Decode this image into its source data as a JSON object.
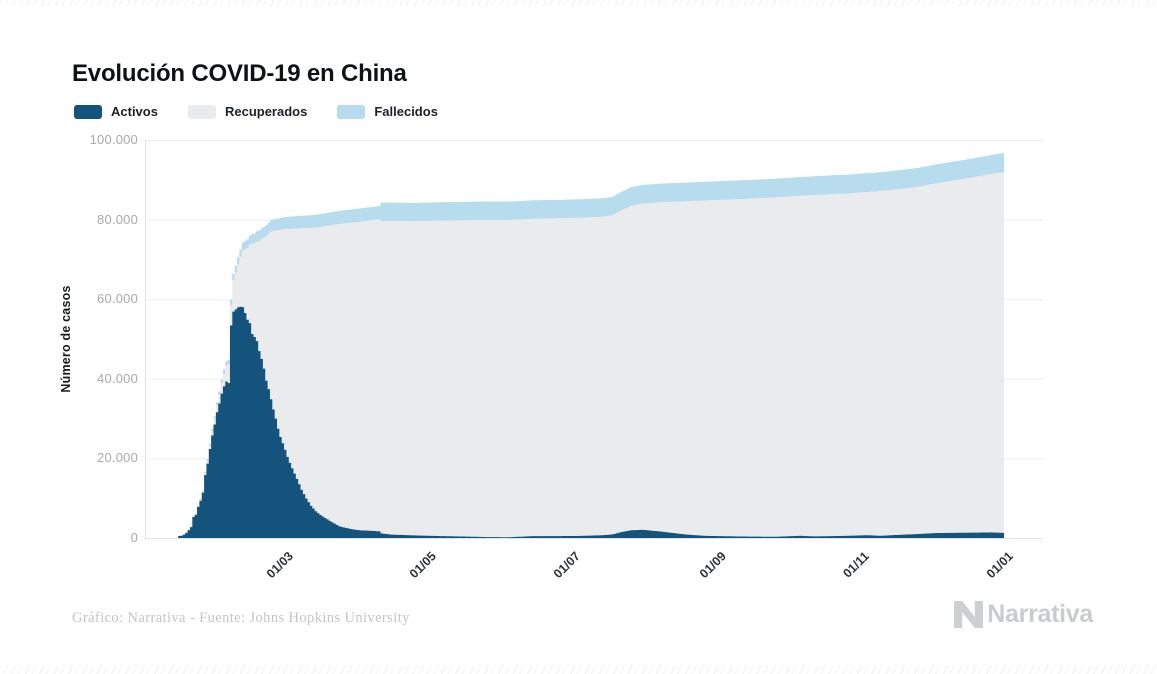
{
  "page": {
    "title": "Evolución COVID-19 en China"
  },
  "legend": [
    {
      "label": "Activos",
      "color": "#14537B"
    },
    {
      "label": "Recuperados",
      "color": "#E9EBEC"
    },
    {
      "label": "Fallecidos",
      "color": "#B6DCEE"
    }
  ],
  "footer": {
    "credit": "Gráfico: Narrativa - Fuente: Johns Hopkins University",
    "brand": "Narrativa"
  },
  "chart_data": {
    "type": "bar",
    "stacked": true,
    "title": "Evolución COVID-19 en China",
    "xlabel": "",
    "ylabel": "Número de casos",
    "ylim": [
      0,
      100000
    ],
    "grid": "horizontal",
    "legend_position": "top-left",
    "series_order_bottom_to_top": [
      "Activos",
      "Recuperados",
      "Fallecidos"
    ],
    "x_unit": "days from first bar (late January 2020) to mid January 2021",
    "x_ticks": [
      {
        "label": "01/03",
        "day": 39
      },
      {
        "label": "01/05",
        "day": 100
      },
      {
        "label": "01/07",
        "day": 161
      },
      {
        "label": "01/09",
        "day": 223
      },
      {
        "label": "01/11",
        "day": 284
      },
      {
        "label": "01/01",
        "day": 345
      }
    ],
    "y_ticks": [
      {
        "label": "0",
        "value": 0
      },
      {
        "label": "20.000",
        "value": 20000
      },
      {
        "label": "40.000",
        "value": 40000
      },
      {
        "label": "60.000",
        "value": 60000
      },
      {
        "label": "80.000",
        "value": 80000
      },
      {
        "label": "100.000",
        "value": 100000
      }
    ],
    "samples_format": [
      "day",
      "activos",
      "recuperados",
      "fallecidos"
    ],
    "samples": [
      [
        0,
        503,
        28,
        17
      ],
      [
        1,
        595,
        30,
        18
      ],
      [
        2,
        858,
        36,
        26
      ],
      [
        3,
        1325,
        39,
        42
      ],
      [
        4,
        1970,
        49,
        56
      ],
      [
        5,
        2737,
        58,
        82
      ],
      [
        6,
        5277,
        101,
        131
      ],
      [
        7,
        5834,
        120,
        133
      ],
      [
        8,
        7835,
        135,
        171
      ],
      [
        9,
        9375,
        214,
        213
      ],
      [
        10,
        11389,
        243,
        259
      ],
      [
        11,
        15806,
        463,
        361
      ],
      [
        12,
        18677,
        614,
        425
      ],
      [
        13,
        22373,
        843,
        491
      ],
      [
        14,
        25762,
        1115,
        563
      ],
      [
        15,
        28515,
        1439,
        633
      ],
      [
        16,
        31586,
        1806,
        718
      ],
      [
        17,
        33787,
        2222,
        805
      ],
      [
        18,
        36285,
        2639,
        905
      ],
      [
        19,
        38098,
        3244,
        1012
      ],
      [
        20,
        39328,
        3946,
        1112
      ],
      [
        21,
        38959,
        4683,
        1117
      ],
      [
        22,
        53376,
        5150,
        1369
      ],
      [
        23,
        56864,
        7973,
        1521
      ],
      [
        24,
        57452,
        9298,
        1663
      ],
      [
        25,
        57988,
        10755,
        1770
      ],
      [
        26,
        58104,
        12462,
        1868
      ],
      [
        27,
        58001,
        14206,
        2004
      ],
      [
        28,
        56546,
        15962,
        2111
      ],
      [
        29,
        54825,
        18014,
        2238
      ],
      [
        30,
        54000,
        19700,
        2345
      ],
      [
        31,
        51251,
        22699,
        2442
      ],
      [
        32,
        50498,
        23590,
        2445
      ],
      [
        33,
        49459,
        24990,
        2593
      ],
      [
        34,
        46949,
        27650,
        2663
      ],
      [
        35,
        45009,
        30053,
        2717
      ],
      [
        36,
        42546,
        32898,
        2747
      ],
      [
        37,
        39549,
        36291,
        2791
      ],
      [
        38,
        37414,
        39002,
        2835
      ],
      [
        39,
        34846,
        42110,
        2870
      ],
      [
        40,
        32301,
        44810,
        2915
      ],
      [
        41,
        30002,
        47204,
        2945
      ],
      [
        42,
        27434,
        49856,
        2981
      ],
      [
        43,
        25364,
        52045,
        3013
      ],
      [
        44,
        23805,
        53726,
        3042
      ],
      [
        45,
        22178,
        55404,
        3070
      ],
      [
        46,
        20385,
        57217,
        3097
      ],
      [
        47,
        18881,
        58735,
        3119
      ],
      [
        48,
        17515,
        60106,
        3136
      ],
      [
        50,
        14859,
        62901,
        3172
      ],
      [
        52,
        12124,
        65660,
        3193
      ],
      [
        54,
        9906,
        67910,
        3217
      ],
      [
        56,
        8106,
        69755,
        3241
      ],
      [
        58,
        6731,
        71266,
        3253
      ],
      [
        60,
        5770,
        72362,
        3265
      ],
      [
        62,
        5030,
        73280,
        3281
      ],
      [
        64,
        4310,
        74181,
        3291
      ],
      [
        66,
        3600,
        75100,
        3299
      ],
      [
        68,
        2967,
        75923,
        3308
      ],
      [
        70,
        2640,
        76405,
        3316
      ],
      [
        73,
        2267,
        76946,
        3330
      ],
      [
        77,
        1905,
        77567,
        3337
      ],
      [
        81,
        1835,
        77956,
        3343
      ],
      [
        85,
        1656,
        78401,
        3346
      ],
      [
        86,
        1150,
        78500,
        4636
      ],
      [
        90,
        860,
        78760,
        4636
      ],
      [
        100,
        650,
        78913,
        4637
      ],
      [
        110,
        490,
        79222,
        4638
      ],
      [
        120,
        380,
        79442,
        4638
      ],
      [
        131,
        230,
        79680,
        4640
      ],
      [
        140,
        190,
        79700,
        4640
      ],
      [
        150,
        460,
        79720,
        4640
      ],
      [
        161,
        480,
        79829,
        4641
      ],
      [
        170,
        520,
        79937,
        4643
      ],
      [
        180,
        700,
        80001,
        4649
      ],
      [
        184,
        900,
        80148,
        4652
      ],
      [
        188,
        1500,
        80840,
        4660
      ],
      [
        192,
        1950,
        81528,
        4672
      ],
      [
        197,
        2050,
        81970,
        4680
      ],
      [
        205,
        1600,
        82760,
        4690
      ],
      [
        215,
        900,
        83700,
        4700
      ],
      [
        223,
        550,
        84240,
        4710
      ],
      [
        238,
        380,
        84755,
        4715
      ],
      [
        253,
        300,
        85230,
        4720
      ],
      [
        264,
        550,
        85425,
        4725
      ],
      [
        270,
        400,
        85770,
        4730
      ],
      [
        284,
        550,
        86010,
        4740
      ],
      [
        292,
        700,
        86208,
        4742
      ],
      [
        298,
        550,
        86605,
        4745
      ],
      [
        306,
        800,
        86852,
        4748
      ],
      [
        314,
        1000,
        87245,
        4755
      ],
      [
        322,
        1250,
        87885,
        4765
      ],
      [
        330,
        1300,
        88580,
        4770
      ],
      [
        338,
        1350,
        89320,
        4780
      ],
      [
        345,
        1400,
        90060,
        4790
      ],
      [
        350,
        1300,
        90600,
        4800
      ]
    ],
    "palette": {
      "grid_line": "#ededee",
      "axis_line": "#e2e3e4",
      "y_tick_label": "#a7a9ab",
      "x_tick_label": "#2e3338",
      "title": "#0e1216",
      "credit": "#c3c4c5",
      "brand": "#c9cccd"
    }
  }
}
